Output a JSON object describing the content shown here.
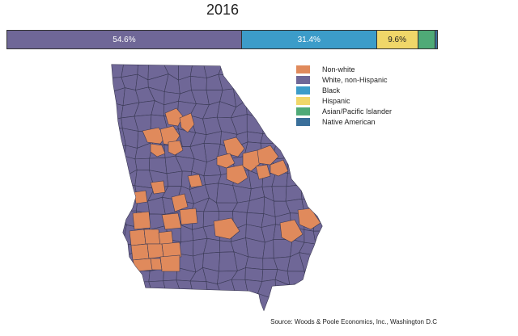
{
  "title": "2016",
  "colors": {
    "non_white": "#e08a5c",
    "white": "#6f6797",
    "black": "#3c9cc9",
    "hispanic": "#f0d769",
    "asian": "#4faa77",
    "native": "#3a6f9a",
    "county_border": "#3a3a55"
  },
  "bar": {
    "segments": [
      {
        "name": "White, non-Hispanic",
        "value": 54.6,
        "label": "54.6%",
        "color": "#6f6797",
        "text_color": "#ffffff"
      },
      {
        "name": "Black",
        "value": 31.4,
        "label": "31.4%",
        "color": "#3c9cc9",
        "text_color": "#ffffff"
      },
      {
        "name": "Hispanic",
        "value": 9.6,
        "label": "9.6%",
        "color": "#f0d769",
        "text_color": "#222222"
      },
      {
        "name": "Asian/Pacific Islander",
        "value": 4.1,
        "label": "",
        "color": "#4faa77",
        "text_color": "#222222"
      },
      {
        "name": "Native American",
        "value": 0.3,
        "label": "",
        "color": "#3a6f9a",
        "text_color": "#222222"
      }
    ]
  },
  "legend": [
    {
      "label": "Non-white",
      "color": "#e08a5c"
    },
    {
      "label": "White, non-Hispanic",
      "color": "#6f6797"
    },
    {
      "label": "Black",
      "color": "#3c9cc9"
    },
    {
      "label": "Hispanic",
      "color": "#f0d769"
    },
    {
      "label": "Asian/Pacific Islander",
      "color": "#4faa77"
    },
    {
      "label": "Native American",
      "color": "#3a6f9a"
    }
  ],
  "source": "Source: Woods & Poole Economics, Inc., Washington D.C"
}
